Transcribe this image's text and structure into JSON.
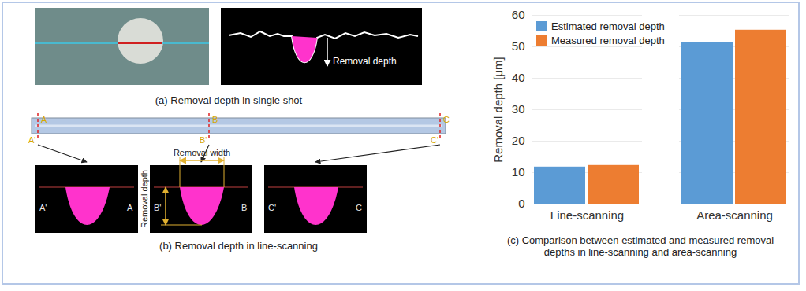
{
  "figure": {
    "a": {
      "caption": "(a) Removal depth in single shot",
      "annotation": "Removal depth"
    },
    "b": {
      "caption": "(b) Removal depth in line-scanning",
      "sections": [
        {
          "label": "A",
          "prime": "A'"
        },
        {
          "label": "B",
          "prime": "B'"
        },
        {
          "label": "C",
          "prime": "C'"
        }
      ],
      "annotations": {
        "width": "Removal width",
        "depth": "Removal depth"
      }
    }
  },
  "chart_data": {
    "type": "bar",
    "caption": "(c) Comparison between estimated and measured removal depths in line-scanning and area-scanning",
    "y_label": "Removal depth [μm]",
    "categories": [
      "Line-scanning",
      "Area-scanning"
    ],
    "series": [
      {
        "name": "Estimated removal depth",
        "color": "#5b9bd5",
        "values": [
          11.8,
          51.3
        ]
      },
      {
        "name": "Measured removal depth",
        "color": "#ed7d31",
        "values": [
          12.3,
          55.3
        ]
      }
    ],
    "ylim": [
      0,
      60
    ],
    "yticks": [
      0,
      10,
      20,
      30,
      40,
      50,
      60
    ],
    "grid": true,
    "legend": "top-left"
  }
}
